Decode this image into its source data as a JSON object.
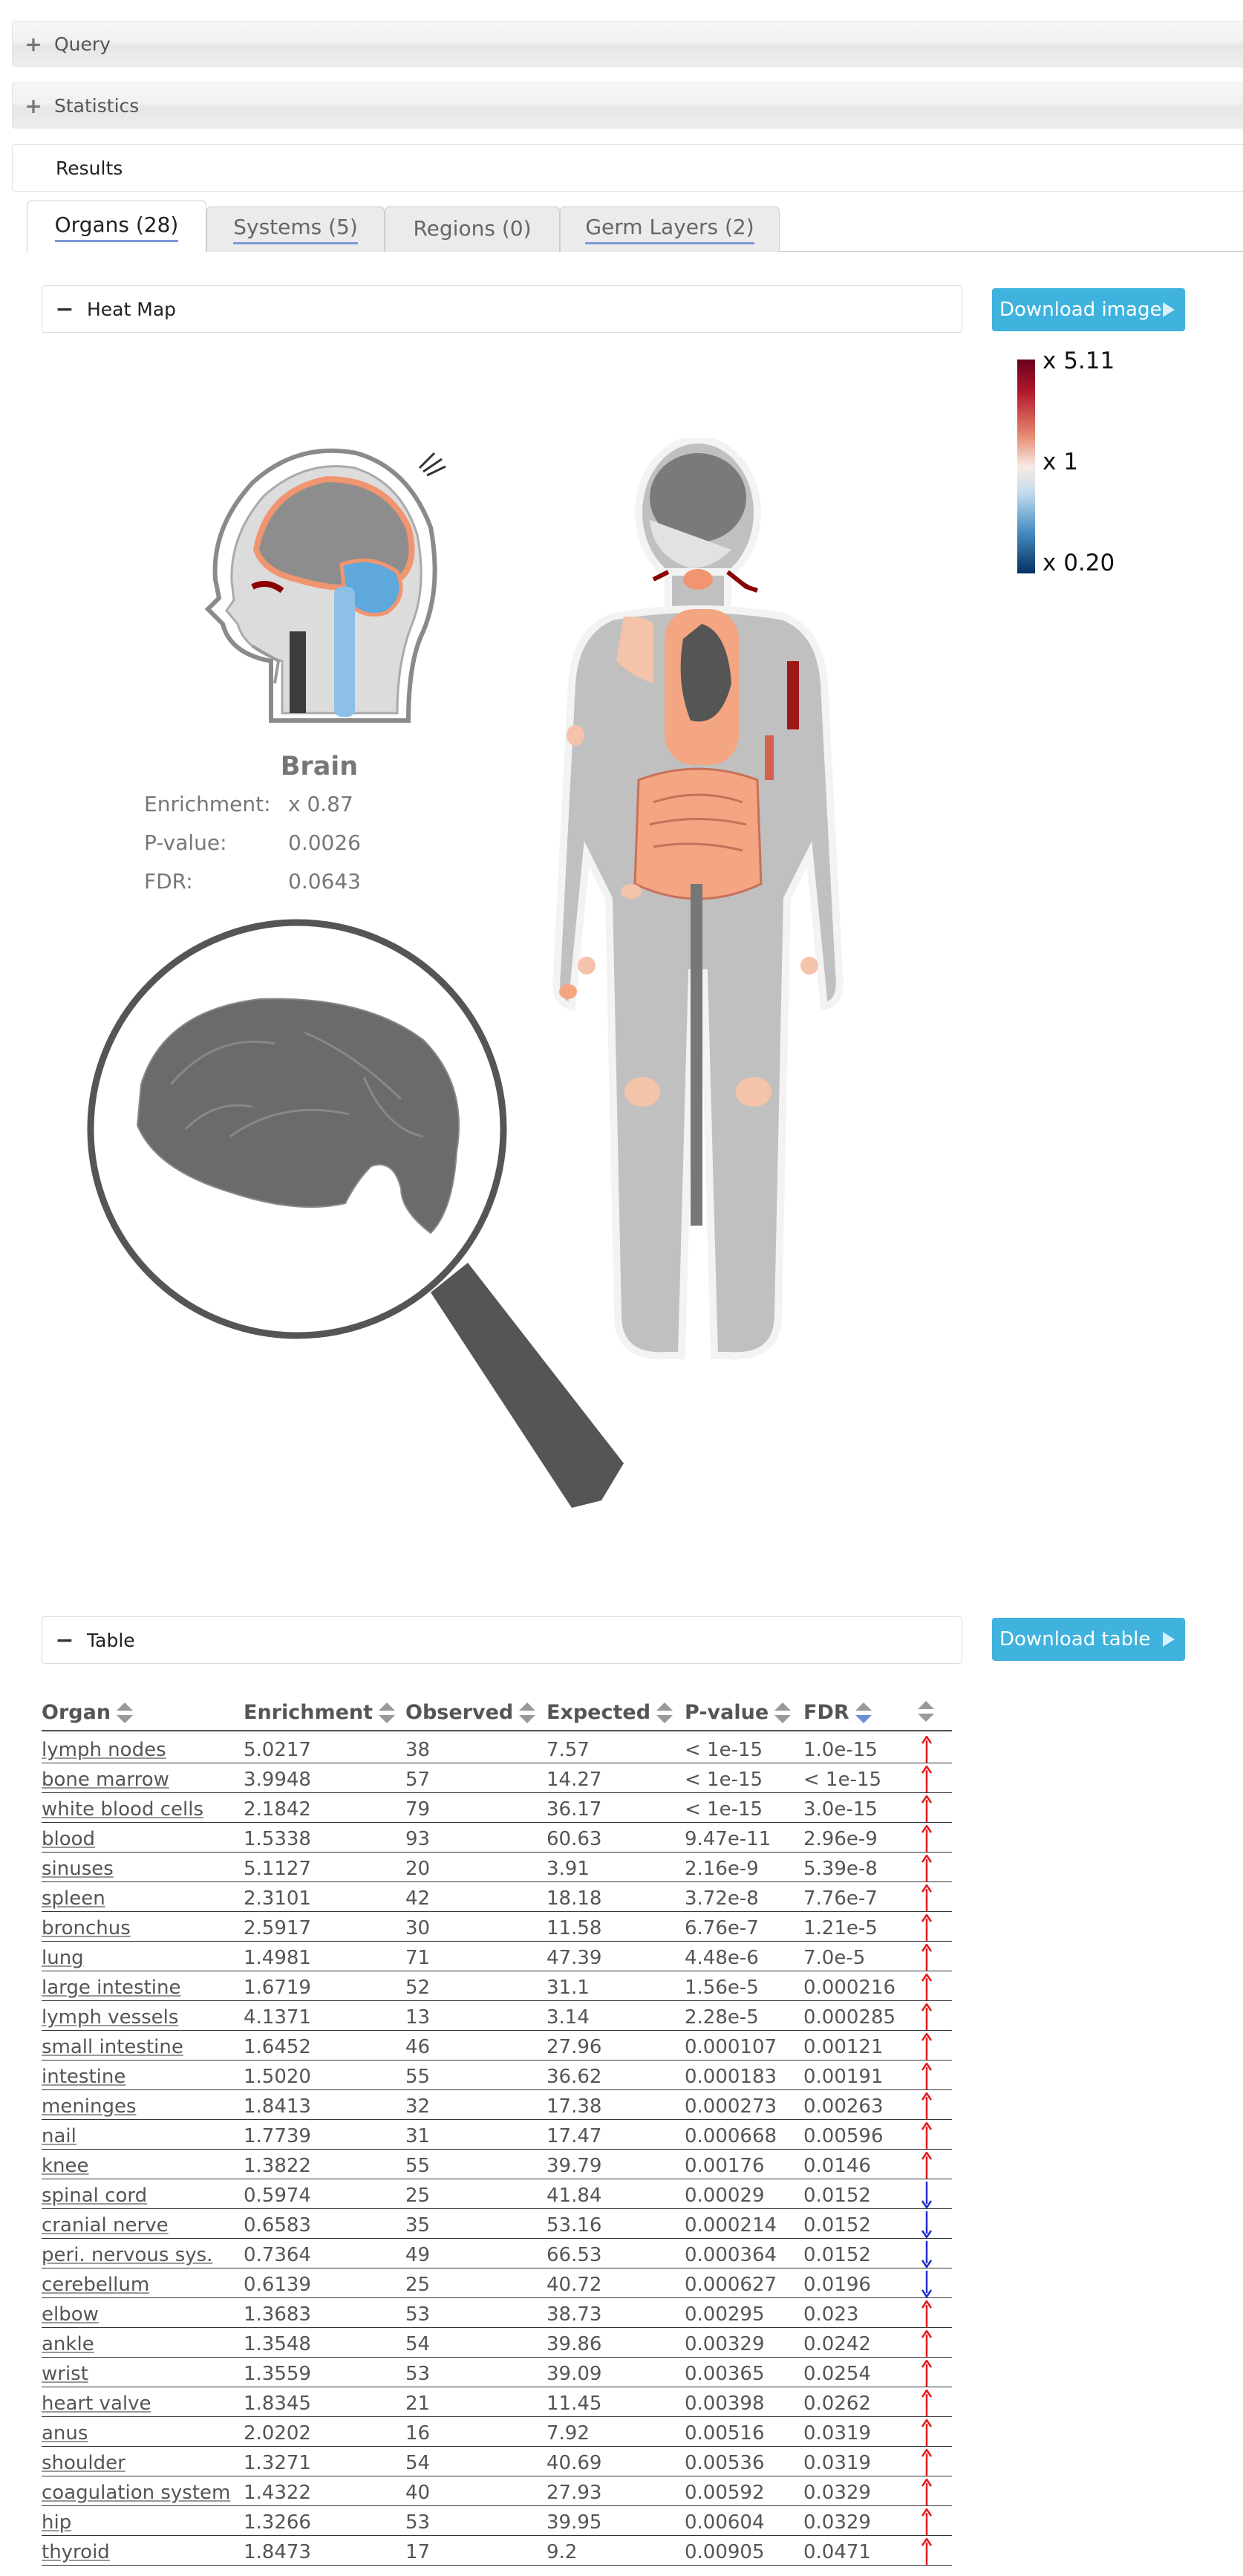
{
  "sections": {
    "query": "Query",
    "statistics": "Statistics",
    "results": "Results",
    "expand_symbol": "+",
    "collapse_symbol": "−"
  },
  "tabs": [
    {
      "label": "Organs (28)",
      "active": true
    },
    {
      "label": "Systems (5)",
      "active": false
    },
    {
      "label": "Regions (0)",
      "active": false
    },
    {
      "label": "Germ Layers (2)",
      "active": false
    }
  ],
  "heatmap": {
    "title": "Heat Map",
    "download_label": "Download image",
    "legend": {
      "max": "x 5.11",
      "mid": "x 1",
      "min": "x 0.20"
    },
    "selected_organ": {
      "name": "Brain",
      "enrichment_label": "Enrichment:",
      "enrichment": "x 0.87",
      "pvalue_label": "P-value:",
      "pvalue": "0.0026",
      "fdr_label": "FDR:",
      "fdr": "0.0643"
    }
  },
  "table": {
    "title": "Table",
    "download_label": "Download table",
    "columns": [
      "Organ",
      "Enrichment",
      "Observed",
      "Expected",
      "P-value",
      "FDR"
    ],
    "colors": {
      "up": "#e41a1c",
      "down": "#1f2bd1"
    },
    "rows": [
      {
        "organ": "lymph nodes",
        "enrichment": "5.0217",
        "observed": "38",
        "expected": "7.57",
        "pvalue": "< 1e-15",
        "fdr": "1.0e-15",
        "dir": "up"
      },
      {
        "organ": "bone marrow",
        "enrichment": "3.9948",
        "observed": "57",
        "expected": "14.27",
        "pvalue": "< 1e-15",
        "fdr": "< 1e-15",
        "dir": "up"
      },
      {
        "organ": "white blood cells",
        "enrichment": "2.1842",
        "observed": "79",
        "expected": "36.17",
        "pvalue": "< 1e-15",
        "fdr": "3.0e-15",
        "dir": "up"
      },
      {
        "organ": "blood",
        "enrichment": "1.5338",
        "observed": "93",
        "expected": "60.63",
        "pvalue": "9.47e-11",
        "fdr": "2.96e-9",
        "dir": "up"
      },
      {
        "organ": "sinuses",
        "enrichment": "5.1127",
        "observed": "20",
        "expected": "3.91",
        "pvalue": "2.16e-9",
        "fdr": "5.39e-8",
        "dir": "up"
      },
      {
        "organ": "spleen",
        "enrichment": "2.3101",
        "observed": "42",
        "expected": "18.18",
        "pvalue": "3.72e-8",
        "fdr": "7.76e-7",
        "dir": "up"
      },
      {
        "organ": "bronchus",
        "enrichment": "2.5917",
        "observed": "30",
        "expected": "11.58",
        "pvalue": "6.76e-7",
        "fdr": "1.21e-5",
        "dir": "up"
      },
      {
        "organ": "lung",
        "enrichment": "1.4981",
        "observed": "71",
        "expected": "47.39",
        "pvalue": "4.48e-6",
        "fdr": "7.0e-5",
        "dir": "up"
      },
      {
        "organ": "large intestine",
        "enrichment": "1.6719",
        "observed": "52",
        "expected": "31.1",
        "pvalue": "1.56e-5",
        "fdr": "0.000216",
        "dir": "up"
      },
      {
        "organ": "lymph vessels",
        "enrichment": "4.1371",
        "observed": "13",
        "expected": "3.14",
        "pvalue": "2.28e-5",
        "fdr": "0.000285",
        "dir": "up"
      },
      {
        "organ": "small intestine",
        "enrichment": "1.6452",
        "observed": "46",
        "expected": "27.96",
        "pvalue": "0.000107",
        "fdr": "0.00121",
        "dir": "up"
      },
      {
        "organ": "intestine",
        "enrichment": "1.5020",
        "observed": "55",
        "expected": "36.62",
        "pvalue": "0.000183",
        "fdr": "0.00191",
        "dir": "up"
      },
      {
        "organ": "meninges",
        "enrichment": "1.8413",
        "observed": "32",
        "expected": "17.38",
        "pvalue": "0.000273",
        "fdr": "0.00263",
        "dir": "up"
      },
      {
        "organ": "nail",
        "enrichment": "1.7739",
        "observed": "31",
        "expected": "17.47",
        "pvalue": "0.000668",
        "fdr": "0.00596",
        "dir": "up"
      },
      {
        "organ": "knee",
        "enrichment": "1.3822",
        "observed": "55",
        "expected": "39.79",
        "pvalue": "0.00176",
        "fdr": "0.0146",
        "dir": "up"
      },
      {
        "organ": "spinal cord",
        "enrichment": "0.5974",
        "observed": "25",
        "expected": "41.84",
        "pvalue": "0.00029",
        "fdr": "0.0152",
        "dir": "down"
      },
      {
        "organ": "cranial nerve",
        "enrichment": "0.6583",
        "observed": "35",
        "expected": "53.16",
        "pvalue": "0.000214",
        "fdr": "0.0152",
        "dir": "down"
      },
      {
        "organ": "peri. nervous sys.",
        "enrichment": "0.7364",
        "observed": "49",
        "expected": "66.53",
        "pvalue": "0.000364",
        "fdr": "0.0152",
        "dir": "down"
      },
      {
        "organ": "cerebellum",
        "enrichment": "0.6139",
        "observed": "25",
        "expected": "40.72",
        "pvalue": "0.000627",
        "fdr": "0.0196",
        "dir": "down"
      },
      {
        "organ": "elbow",
        "enrichment": "1.3683",
        "observed": "53",
        "expected": "38.73",
        "pvalue": "0.00295",
        "fdr": "0.023",
        "dir": "up"
      },
      {
        "organ": "ankle",
        "enrichment": "1.3548",
        "observed": "54",
        "expected": "39.86",
        "pvalue": "0.00329",
        "fdr": "0.0242",
        "dir": "up"
      },
      {
        "organ": "wrist",
        "enrichment": "1.3559",
        "observed": "53",
        "expected": "39.09",
        "pvalue": "0.00365",
        "fdr": "0.0254",
        "dir": "up"
      },
      {
        "organ": "heart valve",
        "enrichment": "1.8345",
        "observed": "21",
        "expected": "11.45",
        "pvalue": "0.00398",
        "fdr": "0.0262",
        "dir": "up"
      },
      {
        "organ": "anus",
        "enrichment": "2.0202",
        "observed": "16",
        "expected": "7.92",
        "pvalue": "0.00516",
        "fdr": "0.0319",
        "dir": "up"
      },
      {
        "organ": "shoulder",
        "enrichment": "1.3271",
        "observed": "54",
        "expected": "40.69",
        "pvalue": "0.00536",
        "fdr": "0.0319",
        "dir": "up"
      },
      {
        "organ": "coagulation system",
        "enrichment": "1.4322",
        "observed": "40",
        "expected": "27.93",
        "pvalue": "0.00592",
        "fdr": "0.0329",
        "dir": "up"
      },
      {
        "organ": "hip",
        "enrichment": "1.3266",
        "observed": "53",
        "expected": "39.95",
        "pvalue": "0.00604",
        "fdr": "0.0329",
        "dir": "up"
      },
      {
        "organ": "thyroid",
        "enrichment": "1.8473",
        "observed": "17",
        "expected": "9.2",
        "pvalue": "0.00905",
        "fdr": "0.0471",
        "dir": "up"
      }
    ]
  }
}
